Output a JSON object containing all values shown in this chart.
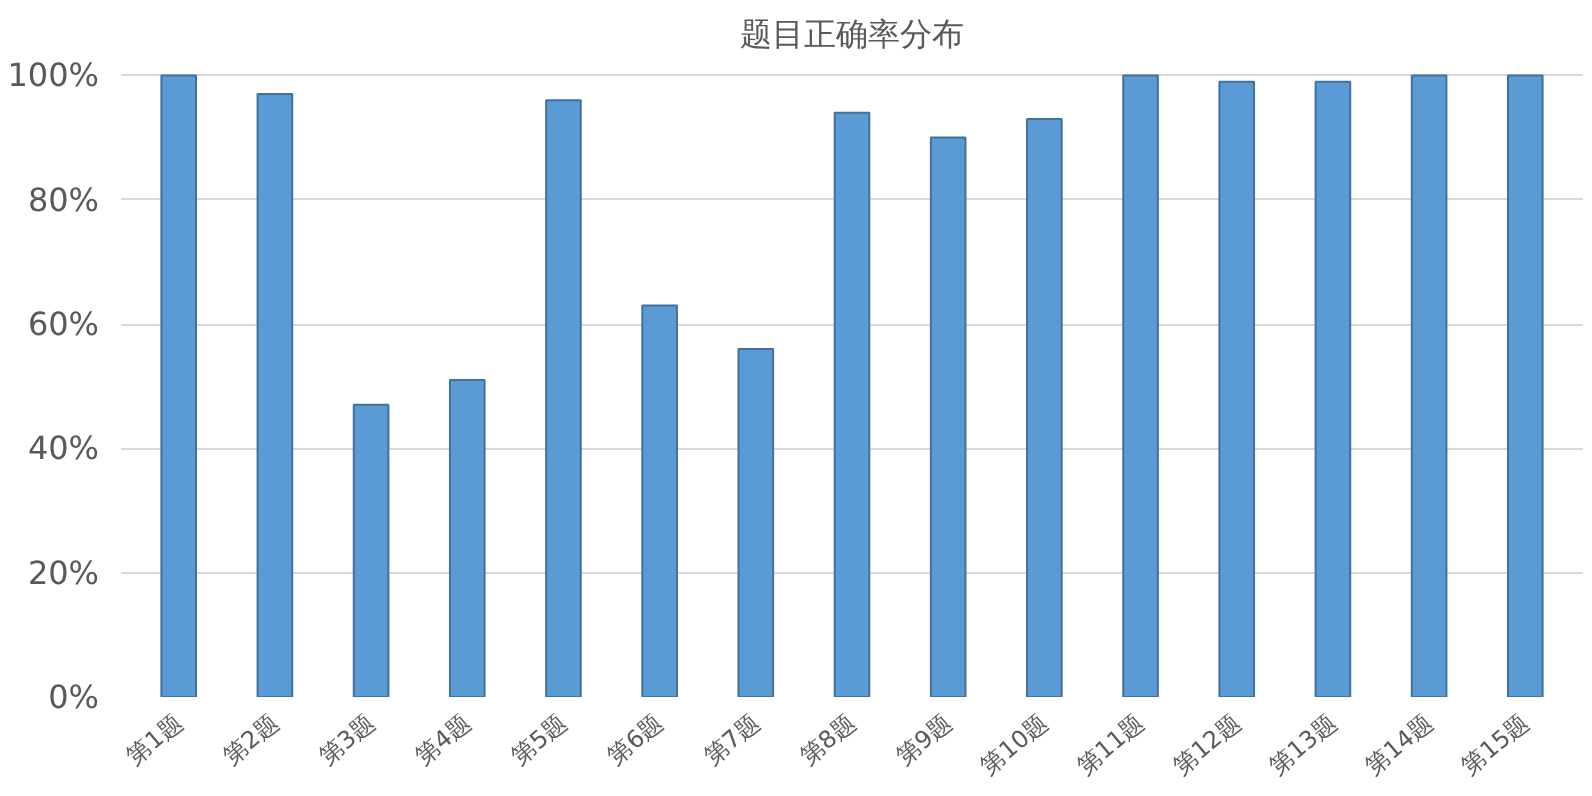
{
  "chart_data": {
    "type": "bar",
    "title": "题目正确率分布",
    "categories": [
      "第1题",
      "第2题",
      "第3题",
      "第4题",
      "第5题",
      "第6题",
      "第7题",
      "第8题",
      "第9题",
      "第10题",
      "第11题",
      "第12题",
      "第13题",
      "第14题",
      "第15题"
    ],
    "values": [
      100,
      97,
      47,
      51,
      96,
      63,
      56,
      94,
      90,
      93,
      100,
      99,
      99,
      100,
      100
    ],
    "color": "#5b9bd5",
    "ylim": [
      0,
      100
    ],
    "yticks": [
      {
        "value": 0,
        "label": "0%"
      },
      {
        "value": 20,
        "label": "20%"
      },
      {
        "value": 40,
        "label": "40%"
      },
      {
        "value": 60,
        "label": "60%"
      },
      {
        "value": 80,
        "label": "80%"
      },
      {
        "value": 100,
        "label": "100%"
      }
    ],
    "grid": "y"
  }
}
